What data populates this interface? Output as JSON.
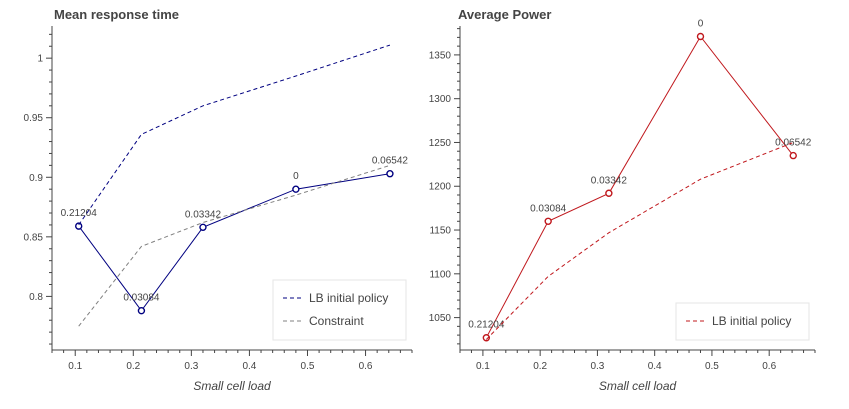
{
  "chart_data": [
    {
      "type": "line",
      "title": "Mean response time",
      "xlabel": "Small cell load",
      "ylabel": "",
      "xlim": [
        0.06,
        0.68
      ],
      "ylim": [
        0.755,
        1.027
      ],
      "xticks": [
        "0.1",
        "0.2",
        "0.3",
        "0.4",
        "0.5",
        "0.6"
      ],
      "yticks": [
        "0.8",
        "0.85",
        "0.9",
        "0.95",
        "1"
      ],
      "grid": false,
      "legend_position": "bottom-right",
      "series": [
        {
          "name": "",
          "style": "solid",
          "markers": true,
          "color": "#000080",
          "x": [
            0.106,
            0.214,
            0.32,
            0.48,
            0.642
          ],
          "y": [
            0.859,
            0.788,
            0.858,
            0.89,
            0.903
          ],
          "labels": [
            "0.21204",
            "0.03084",
            "0.03342",
            "0",
            "0.06542"
          ]
        },
        {
          "name": "LB initial policy",
          "style": "dashed",
          "markers": false,
          "color": "#000080",
          "x": [
            0.106,
            0.214,
            0.32,
            0.48,
            0.642
          ],
          "y": [
            0.86,
            0.936,
            0.96,
            0.985,
            1.011
          ]
        },
        {
          "name": "Constraint",
          "style": "dashed",
          "markers": false,
          "color": "#808080",
          "x": [
            0.106,
            0.214,
            0.32,
            0.48,
            0.642
          ],
          "y": [
            0.775,
            0.842,
            0.862,
            0.885,
            0.91
          ]
        }
      ]
    },
    {
      "type": "line",
      "title": "Average Power",
      "xlabel": "Small cell load",
      "ylabel": "",
      "xlim": [
        0.06,
        0.68
      ],
      "ylim": [
        1013,
        1383
      ],
      "xticks": [
        "0.1",
        "0.2",
        "0.3",
        "0.4",
        "0.5",
        "0.6"
      ],
      "yticks": [
        "1050",
        "1100",
        "1150",
        "1200",
        "1250",
        "1300",
        "1350"
      ],
      "grid": false,
      "legend_position": "bottom-right",
      "series": [
        {
          "name": "",
          "style": "solid",
          "markers": true,
          "color": "#c0181d",
          "x": [
            0.106,
            0.214,
            0.32,
            0.48,
            0.642
          ],
          "y": [
            1027,
            1160,
            1192,
            1371,
            1235
          ],
          "labels": [
            "0.21204",
            "0.03084",
            "0.03342",
            "0",
            "0.06542"
          ]
        },
        {
          "name": "LB initial policy",
          "style": "dashed",
          "markers": false,
          "color": "#c0181d",
          "x": [
            0.106,
            0.214,
            0.32,
            0.48,
            0.642
          ],
          "y": [
            1025,
            1097,
            1147,
            1208,
            1250
          ]
        }
      ]
    }
  ]
}
